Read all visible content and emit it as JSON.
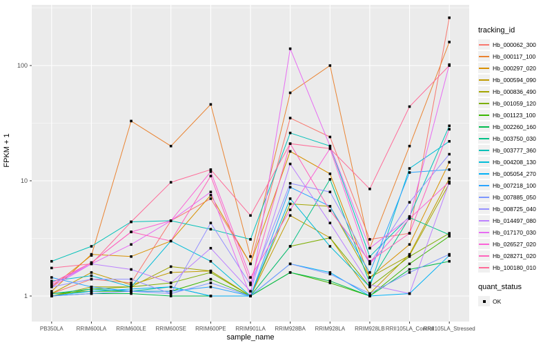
{
  "figure": {
    "bg": "#FFFFFF",
    "panel_bg": "#EBEBEB",
    "grid_color": "#FFFFFF",
    "axis_text_color": "#4D4D4D",
    "axis_title_color": "#000000",
    "marker_color": "#000000"
  },
  "axes": {
    "x_title": "sample_name",
    "y_title": "FPKM + 1",
    "y_tick_labels": [
      "1",
      "10",
      "100"
    ]
  },
  "legend": {
    "tracking_title": "tracking_id",
    "quant_title": "quant_status",
    "quant_items": [
      {
        "label": "OK"
      }
    ]
  },
  "chart_data": {
    "type": "line",
    "title": "",
    "xlabel": "sample_name",
    "ylabel": "FPKM + 1",
    "y_scale": "log10",
    "y_major_ticks": [
      1,
      10,
      100
    ],
    "y_minor_ticks": [
      3.1623,
      31.623,
      316.23
    ],
    "ylim": [
      0.61,
      330
    ],
    "grid": true,
    "legend_position": "right",
    "marker": "black-square",
    "categories": [
      "PB350LA",
      "RRIM600LA",
      "RRIM600LE",
      "RRIM600SE",
      "RRIM600PE",
      "RRIM901LA",
      "RRIM928BA",
      "RRIM928LA",
      "RRIM928LB",
      "RRII105LA_Control",
      "RRII105LA_Stressed"
    ],
    "series": [
      {
        "name": "Hb_000062_300",
        "color": "#F8766D",
        "values": [
          1.05,
          1.4,
          1.3,
          4.5,
          7.0,
          1.9,
          35,
          24,
          3.1,
          3.5,
          260
        ]
      },
      {
        "name": "Hb_000117_100",
        "color": "#EA8331",
        "values": [
          1.2,
          2.25,
          33,
          20,
          46,
          2.2,
          58,
          100,
          2.6,
          20,
          160
        ]
      },
      {
        "name": "Hb_000297_020",
        "color": "#D89000",
        "values": [
          1.1,
          2.3,
          2.2,
          3.0,
          7.5,
          1.9,
          18,
          11.5,
          1.45,
          2.8,
          14.5
        ]
      },
      {
        "name": "Hb_000594_090",
        "color": "#C09B00",
        "values": [
          1.05,
          1.6,
          1.25,
          1.6,
          1.65,
          1.0,
          5.0,
          3.2,
          1.05,
          2.3,
          10.5
        ]
      },
      {
        "name": "Hb_000836_490",
        "color": "#A3A500",
        "values": [
          1.0,
          1.2,
          1.2,
          1.8,
          1.65,
          1.0,
          6.3,
          6.0,
          1.45,
          2.25,
          9.5
        ]
      },
      {
        "name": "Hb_001059_120",
        "color": "#7CAE00",
        "values": [
          1.0,
          1.15,
          1.2,
          1.3,
          1.6,
          1.0,
          2.7,
          3.2,
          1.2,
          2.2,
          3.5
        ]
      },
      {
        "name": "Hb_001123_100",
        "color": "#39B600",
        "values": [
          1.05,
          1.1,
          1.1,
          1.1,
          1.4,
          1.0,
          1.6,
          1.3,
          1.0,
          1.9,
          3.3
        ]
      },
      {
        "name": "Hb_002260_160",
        "color": "#00BB4E",
        "values": [
          1.0,
          1.05,
          1.05,
          1.0,
          1.0,
          1.0,
          1.6,
          1.35,
          1.0,
          1.7,
          2.0
        ]
      },
      {
        "name": "Hb_003750_030",
        "color": "#00C087",
        "values": [
          1.05,
          1.15,
          1.1,
          1.2,
          1.0,
          1.0,
          2.7,
          10.3,
          1.3,
          4.8,
          3.4
        ]
      },
      {
        "name": "Hb_003777_360",
        "color": "#00C0B8",
        "values": [
          2.0,
          2.7,
          4.4,
          4.5,
          3.8,
          3.1,
          26,
          20,
          2.2,
          4.9,
          30
        ]
      },
      {
        "name": "Hb_004208_130",
        "color": "#00BCD8",
        "values": [
          1.35,
          1.5,
          1.2,
          3.0,
          2.0,
          1.0,
          7.0,
          2.7,
          1.2,
          12.8,
          22
        ]
      },
      {
        "name": "Hb_005054_270",
        "color": "#00B0F6",
        "values": [
          1.0,
          1.1,
          1.15,
          1.2,
          1.0,
          1.0,
          1.9,
          1.6,
          1.0,
          1.05,
          2.25
        ]
      },
      {
        "name": "Hb_007218_100",
        "color": "#29A3FF",
        "values": [
          1.45,
          1.2,
          1.1,
          1.1,
          1.2,
          1.0,
          8.8,
          6.0,
          1.6,
          11.8,
          12.5
        ]
      },
      {
        "name": "Hb_007885_050",
        "color": "#7C96FF",
        "values": [
          1.0,
          1.05,
          1.1,
          1.05,
          1.3,
          1.0,
          1.9,
          1.55,
          1.05,
          1.6,
          2.3
        ]
      },
      {
        "name": "Hb_008725_040",
        "color": "#9590FF",
        "values": [
          1.2,
          1.4,
          1.4,
          1.05,
          4.3,
          1.25,
          9.5,
          8.0,
          1.9,
          6.5,
          17
        ]
      },
      {
        "name": "Hb_014497_080",
        "color": "#BC81FF",
        "values": [
          1.25,
          1.9,
          1.7,
          1.3,
          2.6,
          1.1,
          14,
          4.3,
          1.25,
          1.05,
          9.7
        ]
      },
      {
        "name": "Hb_017170_030",
        "color": "#E76BF3",
        "values": [
          1.2,
          1.9,
          2.8,
          4.5,
          8.0,
          1.0,
          140,
          20,
          2.6,
          4.8,
          102
        ]
      },
      {
        "name": "Hb_026527_020",
        "color": "#FB61D7",
        "values": [
          1.25,
          1.95,
          3.6,
          4.5,
          12,
          1.45,
          5.6,
          19,
          1.9,
          4.7,
          9.8
        ]
      },
      {
        "name": "Hb_028271_020",
        "color": "#FF62BC",
        "values": [
          1.3,
          1.95,
          3.6,
          3.0,
          11,
          1.3,
          21,
          5.5,
          2.0,
          3.5,
          28
        ]
      },
      {
        "name": "Hb_100180_010",
        "color": "#FF6A98",
        "values": [
          1.75,
          1.9,
          4.4,
          9.7,
          12.5,
          5.0,
          21,
          19,
          8.5,
          44,
          100
        ]
      }
    ]
  }
}
